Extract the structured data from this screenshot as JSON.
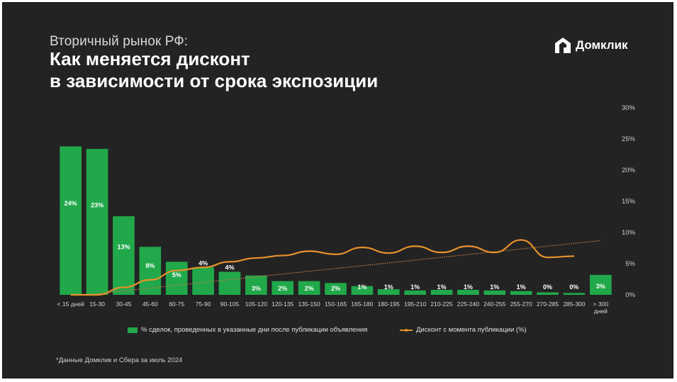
{
  "header": {
    "subtitle": "Вторичный рынок РФ:",
    "title_line1": "Как меняется дисконт",
    "title_line2": "в зависимости от срока экспозиции"
  },
  "logo": {
    "text": "Домклик",
    "icon": "domclick-house-logo-icon"
  },
  "footnote": "*Данные Домклик и Сбера за июль 2024",
  "colors": {
    "bar": "#21a84a",
    "line": "#e8922c",
    "trend": "#b9784a",
    "background": "#232323"
  },
  "chart_data": {
    "type": "bar",
    "categories": [
      "< 15 дней",
      "15-30",
      "30-45",
      "45-60",
      "60-75",
      "75-90",
      "90-105",
      "105-120",
      "120-135",
      "135-150",
      "150-165",
      "165-180",
      "180-195",
      "195-210",
      "210-225",
      "225-240",
      "240-255",
      "255-270",
      "270-285",
      "285-300",
      "> 300 дней"
    ],
    "ylim": [
      0,
      30
    ],
    "y_ticks": [
      "0%",
      "5%",
      "10%",
      "15%",
      "20%",
      "25%",
      "30%"
    ],
    "y_axis_position": "right",
    "grid": false,
    "legend_position": "bottom",
    "series": [
      {
        "name": "% сделок, проведенных в указанные дни после публикации объявления",
        "type": "bar",
        "values": [
          23.8,
          23.4,
          12.6,
          7.7,
          5.3,
          4.4,
          3.7,
          3.1,
          2.2,
          2.2,
          1.9,
          1.4,
          0.9,
          0.7,
          0.8,
          0.8,
          0.7,
          0.6,
          0.4,
          0.3,
          3.2
        ],
        "labels": [
          "24%",
          "23%",
          "13%",
          "8%",
          "5%",
          "4%",
          "4%",
          "3%",
          "2%",
          "2%",
          "2%",
          "1%",
          "1%",
          "1%",
          "1%",
          "1%",
          "1%",
          "1%",
          "0%",
          "0%",
          "3%"
        ]
      },
      {
        "name": "Дисконт с момента публикации (%)",
        "type": "line",
        "values": [
          0,
          0,
          1.2,
          2.4,
          3.9,
          4.4,
          5.3,
          5.9,
          6.3,
          7.0,
          6.5,
          7.6,
          6.7,
          7.8,
          6.8,
          7.8,
          6.8,
          8.8,
          6.0,
          6.2,
          null
        ]
      }
    ],
    "trendline": {
      "from": [
        1,
        0.2
      ],
      "to": [
        20,
        8.7
      ]
    }
  }
}
